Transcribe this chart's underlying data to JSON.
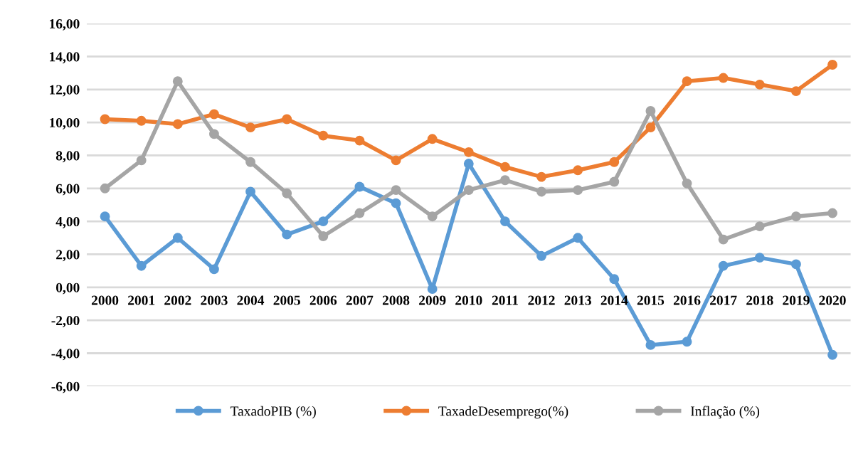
{
  "chart_data": {
    "type": "line",
    "categories": [
      "2000",
      "2001",
      "2002",
      "2003",
      "2004",
      "2005",
      "2006",
      "2007",
      "2008",
      "2009",
      "2010",
      "2011",
      "2012",
      "2013",
      "2014",
      "2015",
      "2016",
      "2017",
      "2018",
      "2019",
      "2020"
    ],
    "series": [
      {
        "name": "TaxadoPIB (%)",
        "color": "#5b9bd5",
        "values": [
          4.3,
          1.3,
          3.0,
          1.1,
          5.8,
          3.2,
          4.0,
          6.1,
          5.1,
          -0.1,
          7.5,
          4.0,
          1.9,
          3.0,
          0.5,
          -3.5,
          -3.3,
          1.3,
          1.8,
          1.4,
          -4.1
        ]
      },
      {
        "name": "TaxadeDesemprego(%)",
        "color": "#ed7d31",
        "values": [
          10.2,
          10.1,
          9.9,
          10.5,
          9.7,
          10.2,
          9.2,
          8.9,
          7.7,
          9.0,
          8.2,
          7.3,
          6.7,
          7.1,
          7.6,
          9.7,
          12.5,
          12.7,
          12.3,
          11.9,
          13.5
        ]
      },
      {
        "name": "Inflação (%)",
        "color": "#a5a5a5",
        "values": [
          6.0,
          7.7,
          12.5,
          9.3,
          7.6,
          5.7,
          3.1,
          4.5,
          5.9,
          4.3,
          5.9,
          6.5,
          5.8,
          5.9,
          6.4,
          10.7,
          6.3,
          2.9,
          3.7,
          4.3,
          4.5
        ]
      }
    ],
    "ylim": [
      -6,
      16
    ],
    "yticks": [
      {
        "value": -6,
        "label": "-6,00"
      },
      {
        "value": -4,
        "label": "-4,00"
      },
      {
        "value": -2,
        "label": "-2,00"
      },
      {
        "value": 0,
        "label": "0,00"
      },
      {
        "value": 2,
        "label": "2,00"
      },
      {
        "value": 4,
        "label": "4,00"
      },
      {
        "value": 6,
        "label": "6,00"
      },
      {
        "value": 8,
        "label": "8,00"
      },
      {
        "value": 10,
        "label": "10,00"
      },
      {
        "value": 12,
        "label": "12,00"
      },
      {
        "value": 14,
        "label": "14,00"
      },
      {
        "value": 16,
        "label": "16,00"
      }
    ],
    "grid": "y",
    "legend": "bottom",
    "marker": "circle",
    "line_style": "solid"
  }
}
